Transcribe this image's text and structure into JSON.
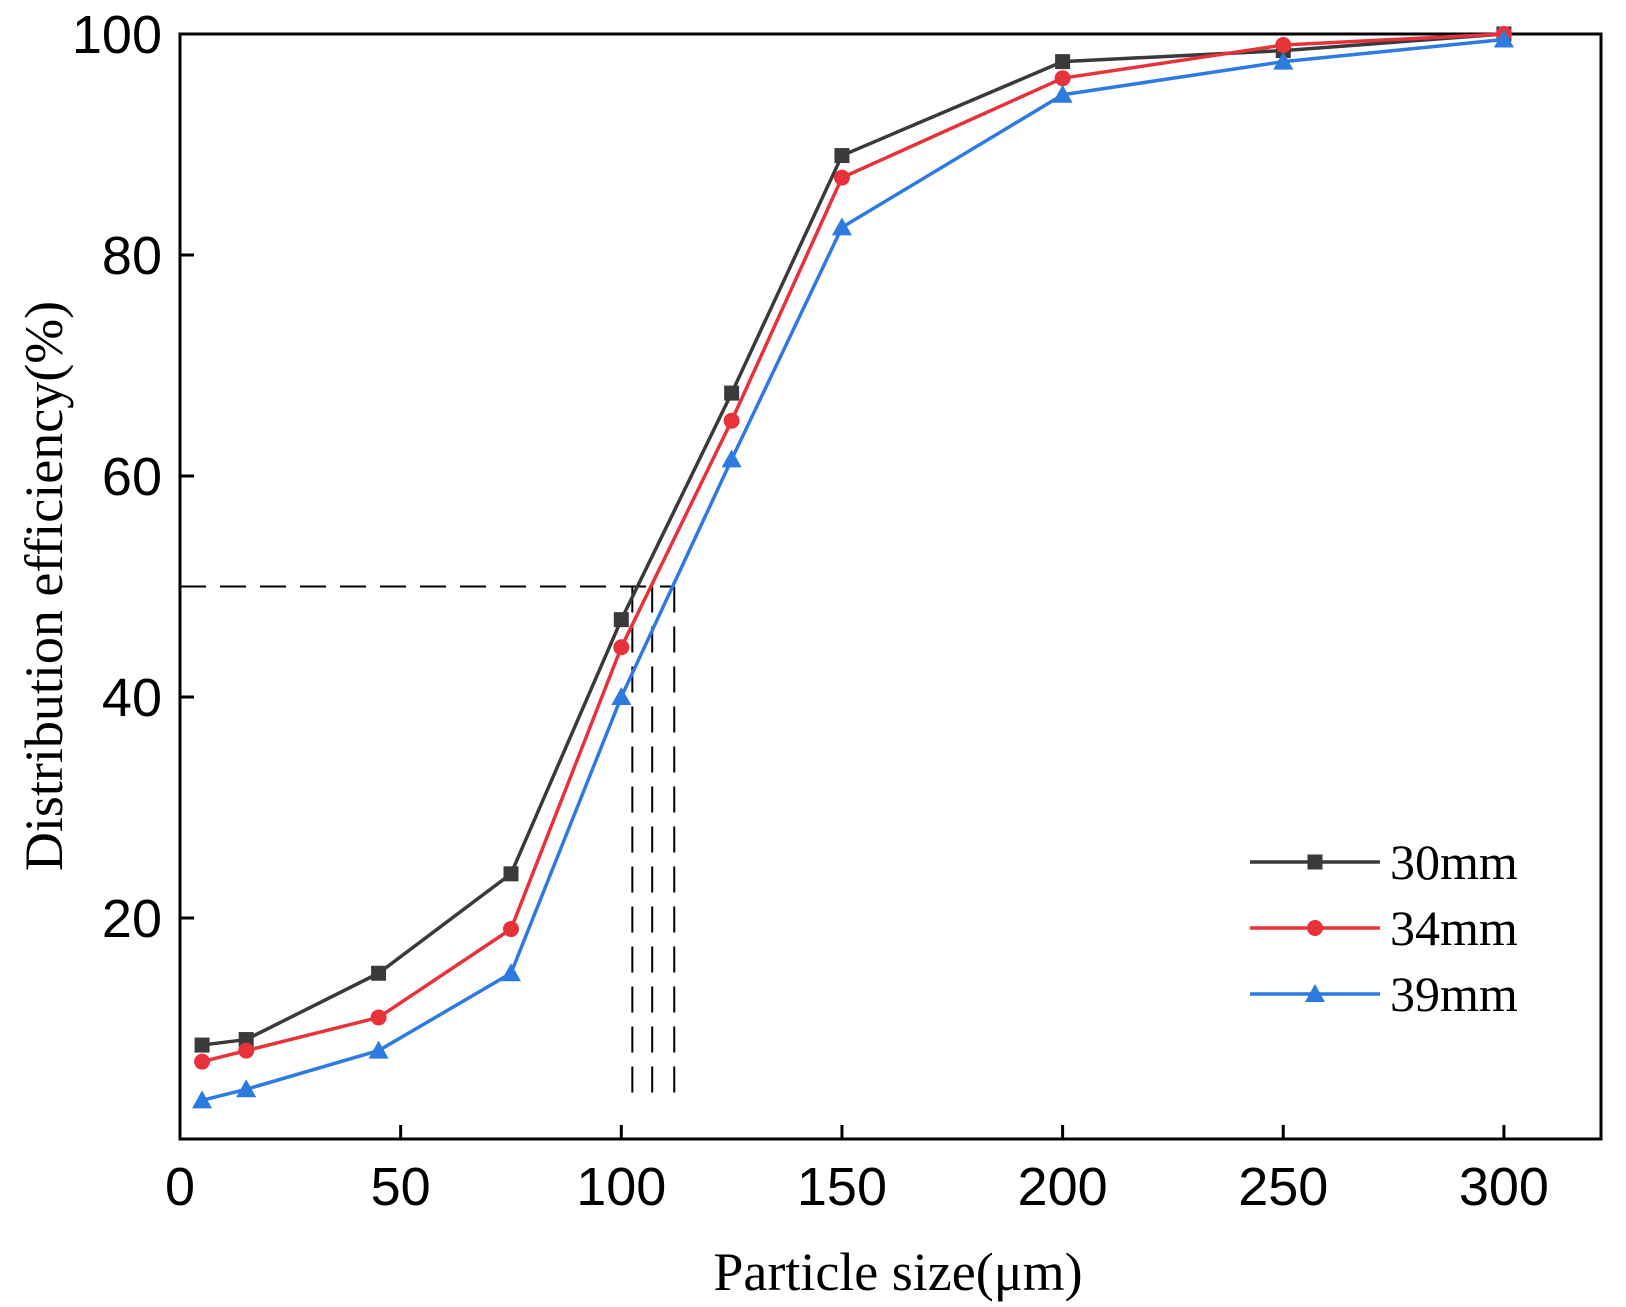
{
  "chart_data": {
    "type": "line",
    "title": "",
    "xlabel": "Particle size(μm)",
    "ylabel": "Distribution efficiency(%)",
    "xlim": [
      0,
      322
    ],
    "ylim": [
      0,
      100
    ],
    "xticks": [
      0,
      50,
      100,
      150,
      200,
      250,
      300
    ],
    "yticks": [
      20,
      40,
      60,
      80,
      100
    ],
    "x": [
      5,
      15,
      45,
      75,
      100,
      125,
      150,
      200,
      250,
      300
    ],
    "series": [
      {
        "name": "30mm",
        "color": "#3a3a3a",
        "marker": "square",
        "values": [
          8.5,
          9,
          15,
          24,
          47,
          67.5,
          89,
          97.5,
          98.5,
          100
        ]
      },
      {
        "name": "34mm",
        "color": "#e8323a",
        "marker": "circle",
        "values": [
          7,
          8,
          11,
          19,
          44.5,
          65,
          87,
          96,
          99,
          100
        ]
      },
      {
        "name": "39mm",
        "color": "#2d7be0",
        "marker": "triangle",
        "values": [
          3.5,
          4.5,
          8,
          15,
          40,
          61.5,
          82.5,
          94.5,
          97.5,
          99.5
        ]
      }
    ],
    "annotations": {
      "threshold_y": 50,
      "intersection_x": [
        102.5,
        107,
        112
      ]
    },
    "legend_position": "bottom-right",
    "grid": false
  }
}
